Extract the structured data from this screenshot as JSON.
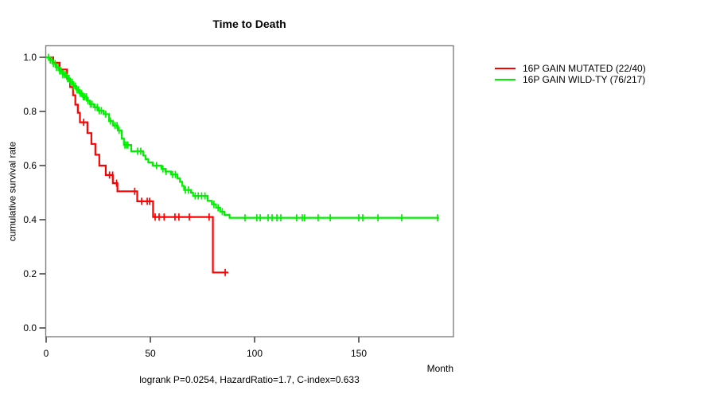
{
  "chart_data": {
    "type": "line",
    "chart_kind": "kaplan-meier-step",
    "title": "Time to Death",
    "xlabel": "Month",
    "ylabel": "cumulative survival rate",
    "footnote": "logrank P=0.0254, HazardRatio=1.7, C-index=0.633",
    "xlim": [
      0,
      195
    ],
    "ylim": [
      0.0,
      1.0
    ],
    "xticks": [
      0,
      50,
      100,
      150
    ],
    "ytick_labels": [
      "0.0",
      "0.2",
      "0.4",
      "0.6",
      "0.8",
      "1.0"
    ],
    "grid": false,
    "legend_position": "right-outside",
    "frame_color": "#7f7f7f",
    "axis_color": "#1a1a1a",
    "series": [
      {
        "name": "16P GAIN MUTATED (22/40)",
        "color": "#ff0000",
        "events": 22,
        "n": 40,
        "steps": [
          [
            0,
            1.0
          ],
          [
            3.4,
            0.98
          ],
          [
            6.5,
            0.955
          ],
          [
            10,
            0.92
          ],
          [
            11.5,
            0.89
          ],
          [
            12.9,
            0.86
          ],
          [
            14,
            0.825
          ],
          [
            15.2,
            0.795
          ],
          [
            16.2,
            0.76
          ],
          [
            19.8,
            0.72
          ],
          [
            21.7,
            0.68
          ],
          [
            23.6,
            0.64
          ],
          [
            25.5,
            0.6
          ],
          [
            28.6,
            0.565
          ],
          [
            32,
            0.535
          ],
          [
            34.2,
            0.505
          ],
          [
            43.7,
            0.468
          ],
          [
            51.3,
            0.41
          ],
          [
            80,
            0.205
          ],
          [
            87.4,
            0.205
          ]
        ],
        "censor_months": [
          18,
          30.4,
          31.9,
          33.8,
          42.5,
          45.8,
          48.5,
          49.6,
          52.3,
          54.2,
          56.6,
          61.8,
          63.7,
          68.7,
          78.2,
          85.9
        ]
      },
      {
        "name": "16P GAIN WILD-TY (76/217)",
        "color": "#00ee00",
        "events": 76,
        "n": 217,
        "steps": [
          [
            0,
            1.0
          ],
          [
            1.5,
            0.99
          ],
          [
            3,
            0.977
          ],
          [
            4.5,
            0.963
          ],
          [
            6.5,
            0.95
          ],
          [
            8,
            0.936
          ],
          [
            10,
            0.922
          ],
          [
            11.5,
            0.908
          ],
          [
            13,
            0.894
          ],
          [
            14.5,
            0.88
          ],
          [
            16,
            0.867
          ],
          [
            17.5,
            0.854
          ],
          [
            19.5,
            0.84
          ],
          [
            21,
            0.827
          ],
          [
            23,
            0.815
          ],
          [
            25,
            0.803
          ],
          [
            27.5,
            0.79
          ],
          [
            30.2,
            0.765
          ],
          [
            32,
            0.748
          ],
          [
            34.4,
            0.73
          ],
          [
            36.3,
            0.7
          ],
          [
            37.3,
            0.676
          ],
          [
            40.8,
            0.653
          ],
          [
            46.6,
            0.637
          ],
          [
            47.7,
            0.624
          ],
          [
            49,
            0.612
          ],
          [
            51.1,
            0.6
          ],
          [
            55.3,
            0.588
          ],
          [
            57.2,
            0.578
          ],
          [
            59.9,
            0.567
          ],
          [
            63,
            0.553
          ],
          [
            64.2,
            0.54
          ],
          [
            65.3,
            0.525
          ],
          [
            66.2,
            0.51
          ],
          [
            69.5,
            0.5
          ],
          [
            70.5,
            0.488
          ],
          [
            77.5,
            0.47
          ],
          [
            79.5,
            0.457
          ],
          [
            81.5,
            0.444
          ],
          [
            83.5,
            0.43
          ],
          [
            85.5,
            0.418
          ],
          [
            88,
            0.407
          ],
          [
            188.5,
            0.407
          ]
        ],
        "censor_months": [
          1.2,
          2,
          2.8,
          3.5,
          4.3,
          5,
          5.8,
          6.5,
          7.2,
          8,
          8.8,
          9.5,
          10.3,
          11,
          11.8,
          12.5,
          13.2,
          14,
          14.8,
          15.5,
          16.3,
          17,
          17.8,
          18.5,
          19.3,
          20,
          21.2,
          22,
          23.5,
          24.5,
          25.5,
          26.5,
          28.6,
          30.8,
          33,
          34,
          35,
          37.8,
          38.5,
          39.2,
          43.9,
          45.4,
          53,
          56,
          57.5,
          60.7,
          62,
          66.8,
          68.3,
          71.5,
          73,
          74.6,
          76.2,
          80.5,
          82.5,
          84.5,
          95.4,
          101.1,
          102.7,
          106.5,
          108.4,
          110.7,
          112.6,
          120.2,
          122.9,
          124,
          130.5,
          136.3,
          150,
          151.9,
          159.2,
          170.6,
          187.8
        ]
      }
    ]
  }
}
